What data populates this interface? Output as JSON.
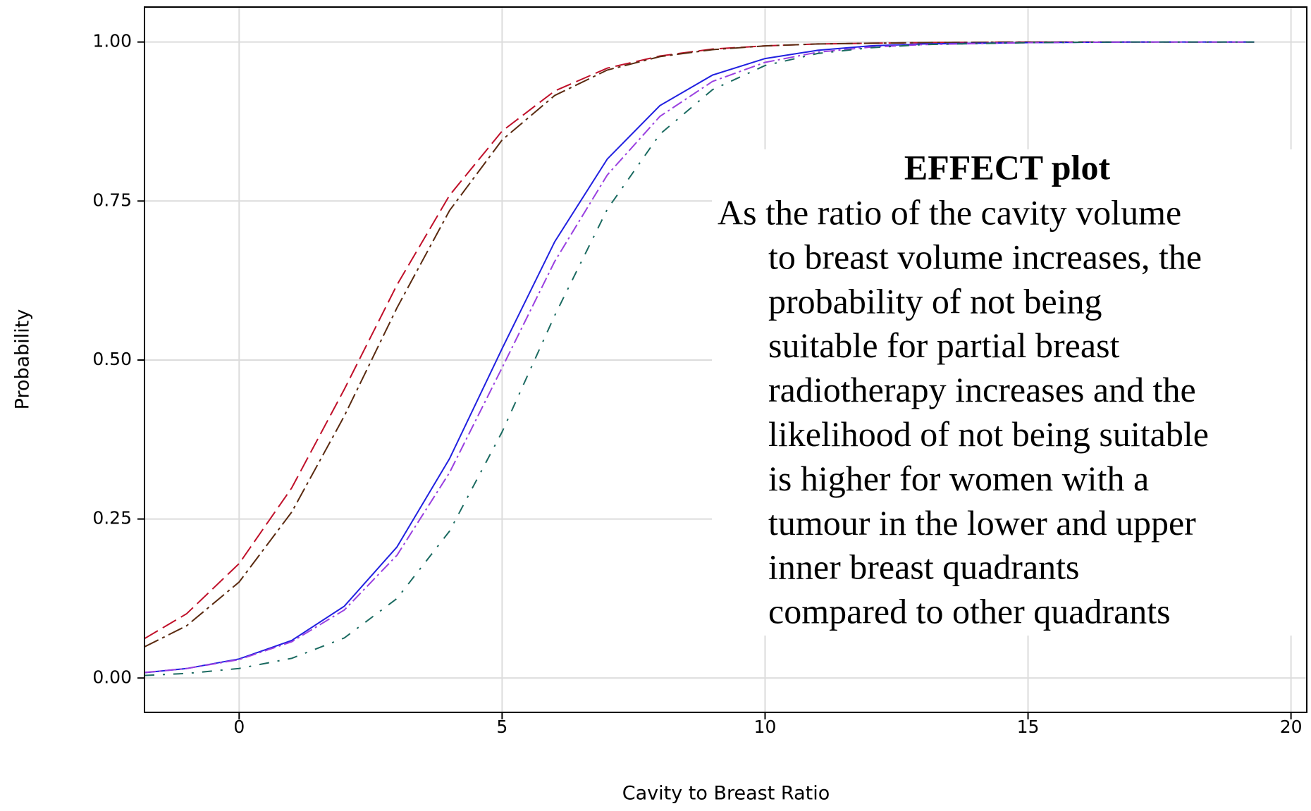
{
  "chart_data": {
    "type": "line",
    "x_label": "Cavity to Breast Ratio",
    "y_label": "Probability",
    "x": [
      -1.8,
      -1,
      0,
      1,
      2,
      3,
      4,
      5,
      6,
      7,
      8,
      9,
      10,
      11,
      12,
      13,
      15,
      17,
      19.3
    ],
    "series": [
      {
        "color": "#c0102a",
        "dash": "22 8",
        "values": [
          0.062,
          0.101,
          0.18,
          0.299,
          0.454,
          0.618,
          0.759,
          0.86,
          0.923,
          0.959,
          0.978,
          0.989,
          0.994,
          0.997,
          0.998,
          0.999,
          1.0,
          1.0,
          1.0
        ]
      },
      {
        "color": "#5a2a10",
        "dash": "22 6 4 6",
        "values": [
          0.049,
          0.082,
          0.151,
          0.261,
          0.412,
          0.582,
          0.735,
          0.846,
          0.916,
          0.956,
          0.977,
          0.988,
          0.994,
          0.997,
          0.998,
          0.999,
          1.0,
          1.0,
          1.0
        ]
      },
      {
        "color": "#2020e0",
        "dash": "none",
        "values": [
          0.0085,
          0.0149,
          0.03,
          0.059,
          0.113,
          0.206,
          0.345,
          0.518,
          0.686,
          0.816,
          0.9,
          0.948,
          0.974,
          0.987,
          0.994,
          0.997,
          0.999,
          1.0,
          1.0
        ]
      },
      {
        "color": "#9a40e0",
        "dash": "16 5 3 5",
        "values": [
          0.0087,
          0.0149,
          0.029,
          0.057,
          0.107,
          0.193,
          0.323,
          0.488,
          0.655,
          0.791,
          0.883,
          0.938,
          0.968,
          0.984,
          0.992,
          0.996,
          0.999,
          1.0,
          1.0
        ]
      },
      {
        "color": "#1a6a60",
        "dash": "14 12 3 12",
        "values": [
          0.004,
          0.0072,
          0.015,
          0.031,
          0.063,
          0.125,
          0.231,
          0.387,
          0.57,
          0.737,
          0.855,
          0.925,
          0.963,
          0.982,
          0.991,
          0.996,
          0.999,
          1.0,
          1.0
        ]
      }
    ],
    "xlim": [
      -1.8,
      20.3
    ],
    "ylim": [
      -0.054,
      1.055
    ],
    "xticks": [
      0,
      5,
      10,
      15,
      20
    ],
    "yticks": [
      {
        "value": 0,
        "label": "0.00"
      },
      0.25,
      {
        "value": 0.5,
        "label": "0.50"
      },
      0.75,
      {
        "value": 1,
        "label": "1.00"
      }
    ],
    "grid": true,
    "annotation": {
      "title": "EFFECT plot",
      "lines": [
        "As the ratio of the cavity volume",
        "to breast volume increases, the",
        "probability of not being",
        "suitable for partial breast",
        "radiotherapy increases and the",
        "likelihood of not being suitable",
        "is higher for women with a",
        "tumour in the lower and upper",
        "inner breast quadrants",
        "compared to other quadrants"
      ]
    }
  }
}
